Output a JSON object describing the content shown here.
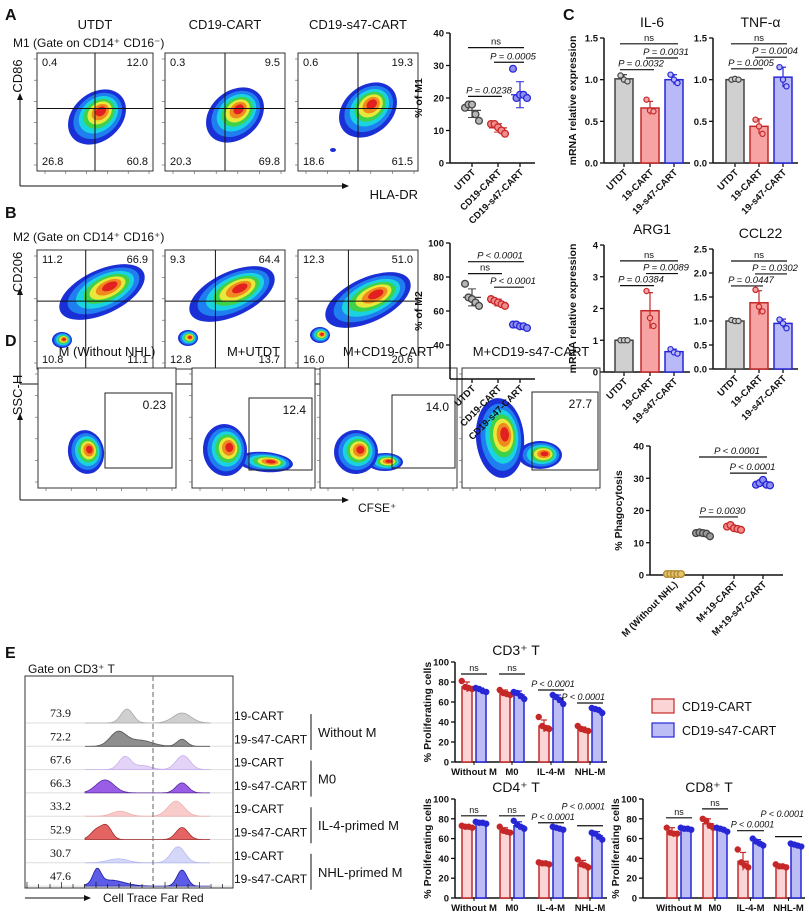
{
  "panels": {
    "A": {
      "label": "A",
      "columns": [
        "UTDT",
        "CD19-CART",
        "CD19-s47-CART"
      ],
      "gate": "M1 (Gate on CD14⁺ CD16⁻)",
      "y_axis": "CD86",
      "x_axis": "HLA-DR",
      "quadrants": [
        [
          "0.4",
          "12.0",
          "26.8",
          "60.8"
        ],
        [
          "0.3",
          "9.5",
          "20.3",
          "69.8"
        ],
        [
          "0.6",
          "19.3",
          "18.6",
          "61.5"
        ]
      ]
    },
    "B": {
      "label": "B",
      "gate": "M2 (Gate on CD14⁺ CD16⁺)",
      "y_axis": "CD206",
      "x_axis": "CD163",
      "quadrants": [
        [
          "11.2",
          "66.9",
          "10.8",
          "11.1"
        ],
        [
          "9.3",
          "64.4",
          "12.8",
          "13.7"
        ],
        [
          "12.3",
          "51.0",
          "16.0",
          "20.6"
        ]
      ]
    },
    "C": {
      "label": "C"
    },
    "D": {
      "label": "D",
      "columns": [
        "M (Without NHL)",
        "M+UTDT",
        "M+CD19-CART",
        "M+CD19-s47-CART"
      ],
      "y_axis": "SSC-H",
      "x_axis": "CFSE⁺",
      "gates": [
        "0.23",
        "12.4",
        "14.0",
        "27.7"
      ]
    },
    "E": {
      "label": "E",
      "gate": "Gate on CD3⁺ T",
      "x_axis": "Cell Trace Far Red",
      "rows": [
        {
          "value": "73.9",
          "sample": "19-CART"
        },
        {
          "value": "72.2",
          "sample": "19-s47-CART"
        },
        {
          "value": "67.6",
          "sample": "19-CART"
        },
        {
          "value": "66.3",
          "sample": "19-s47-CART"
        },
        {
          "value": "33.2",
          "sample": "19-CART"
        },
        {
          "value": "52.9",
          "sample": "19-s47-CART"
        },
        {
          "value": "30.7",
          "sample": "19-CART"
        },
        {
          "value": "47.6",
          "sample": "19-s47-CART"
        }
      ],
      "groups": [
        "Without M",
        "M0",
        "IL-4-primed M",
        "NHL-primed M"
      ]
    }
  },
  "chart_data": [
    {
      "type": "scatter",
      "ylabel": "% of M1",
      "ylim": [
        0,
        40
      ],
      "yticks": [
        "0",
        "10",
        "20",
        "30",
        "40"
      ],
      "categories": [
        "UTDT",
        "CD19-CART",
        "CD19-s47-CART"
      ],
      "groups": [
        {
          "points": [
            17,
            18,
            18,
            15,
            13
          ],
          "mean": 16.2,
          "sd": 2.2,
          "color": "#444444",
          "fill": "#b5b5b5"
        },
        {
          "points": [
            12,
            12,
            11,
            10,
            9
          ],
          "mean": 10.8,
          "sd": 1.3,
          "color": "#c62828",
          "fill": "#f28b8b"
        },
        {
          "points": [
            29,
            20,
            21,
            21,
            20
          ],
          "mean": 21,
          "sd": 4,
          "color": "#2727d6",
          "fill": "#8f8ff0"
        }
      ],
      "annotations": [
        {
          "from": 0,
          "to": 2,
          "text": "ns",
          "y": 35.5
        },
        {
          "from": 1,
          "to": 2,
          "text": "P = 0.0005",
          "y": 31
        },
        {
          "from": 0,
          "to": 1,
          "text": "P = 0.0238",
          "y": 20.5
        }
      ]
    },
    {
      "type": "scatter",
      "ylabel": "% of M2",
      "ylim": [
        20,
        100
      ],
      "yticks": [
        "40",
        "60",
        "80",
        "100"
      ],
      "categories": [
        "UTDT",
        "CD19-CART",
        "CD19-s47-CART"
      ],
      "groups": [
        {
          "points": [
            76,
            68,
            67,
            65,
            63
          ],
          "mean": 68,
          "sd": 5,
          "color": "#444444",
          "fill": "#b5b5b5"
        },
        {
          "points": [
            67,
            66,
            65,
            64,
            63
          ],
          "mean": 65,
          "sd": 2,
          "color": "#c62828",
          "fill": "#f28b8b"
        },
        {
          "points": [
            52,
            52,
            51,
            51,
            50
          ],
          "mean": 51,
          "sd": 1,
          "color": "#2727d6",
          "fill": "#8f8ff0"
        }
      ],
      "annotations": [
        {
          "from": 0,
          "to": 2,
          "text": "P < 0.0001",
          "y": 89
        },
        {
          "from": 0,
          "to": 1,
          "text": "ns",
          "y": 82
        },
        {
          "from": 1,
          "to": 2,
          "text": "P < 0.0001",
          "y": 74
        }
      ]
    },
    {
      "type": "bar",
      "title": "IL-6",
      "ylabel": "mRNA relative expression",
      "ylim": [
        0,
        1.5
      ],
      "yticks": [
        "0.0",
        "0.5",
        "1.0",
        "1.5"
      ],
      "categories": [
        "UTDT",
        "19-CART",
        "19-s47-CART"
      ],
      "groups": [
        {
          "points": [
            1.05,
            1.0,
            0.98
          ],
          "mean": 1.01,
          "sd": 0.05,
          "color": "#444444",
          "fill": "#d0d0d0"
        },
        {
          "points": [
            0.76,
            0.63,
            0.62
          ],
          "mean": 0.66,
          "sd": 0.08,
          "color": "#c62828",
          "fill": "#f7a3a3"
        },
        {
          "points": [
            1.06,
            1.0,
            0.96
          ],
          "mean": 1.0,
          "sd": 0.06,
          "color": "#2727d6",
          "fill": "#b9b9f7"
        }
      ],
      "annotations": [
        {
          "from": 0,
          "to": 2,
          "text": "ns",
          "y": 1.43
        },
        {
          "from": 1,
          "to": 2,
          "text": "P = 0.0031",
          "y": 1.26
        },
        {
          "from": 0,
          "to": 1,
          "text": "P = 0.0032",
          "y": 1.12
        }
      ]
    },
    {
      "type": "bar",
      "title": "TNF-α",
      "ylim": [
        0,
        1.5
      ],
      "yticks": [
        "0.0",
        "0.5",
        "1.0",
        "1.5"
      ],
      "categories": [
        "UTDT",
        "19-CART",
        "19-s47-CART"
      ],
      "groups": [
        {
          "points": [
            1.0,
            1.01,
            1.0
          ],
          "mean": 1.0,
          "sd": 0.02,
          "color": "#444444",
          "fill": "#d0d0d0"
        },
        {
          "points": [
            0.52,
            0.44,
            0.35
          ],
          "mean": 0.44,
          "sd": 0.09,
          "color": "#c62828",
          "fill": "#f7a3a3"
        },
        {
          "points": [
            1.15,
            1.0,
            0.92
          ],
          "mean": 1.03,
          "sd": 0.12,
          "color": "#2727d6",
          "fill": "#b9b9f7"
        }
      ],
      "annotations": [
        {
          "from": 0,
          "to": 2,
          "text": "ns",
          "y": 1.43
        },
        {
          "from": 1,
          "to": 2,
          "text": "P = 0.0004",
          "y": 1.27
        },
        {
          "from": 0,
          "to": 1,
          "text": "P = 0.0005",
          "y": 1.13
        }
      ]
    },
    {
      "type": "bar",
      "title": "ARG1",
      "ylabel": "mRNA relative expression",
      "ylim": [
        0,
        4
      ],
      "yticks": [
        "0",
        "1",
        "2",
        "3",
        "4"
      ],
      "categories": [
        "UTDT",
        "19-CART",
        "19-s47-CART"
      ],
      "groups": [
        {
          "points": [
            1.0,
            1.0,
            1.0
          ],
          "mean": 1.0,
          "sd": 0.01,
          "color": "#444444",
          "fill": "#d0d0d0"
        },
        {
          "points": [
            2.55,
            1.7,
            1.45
          ],
          "mean": 1.93,
          "sd": 0.57,
          "color": "#c62828",
          "fill": "#f7a3a3"
        },
        {
          "points": [
            0.72,
            0.62,
            0.58
          ],
          "mean": 0.64,
          "sd": 0.08,
          "color": "#2727d6",
          "fill": "#b9b9f7"
        }
      ],
      "annotations": [
        {
          "from": 0,
          "to": 2,
          "text": "ns",
          "y": 3.5
        },
        {
          "from": 1,
          "to": 2,
          "text": "P = 0.0089",
          "y": 3.1
        },
        {
          "from": 0,
          "to": 1,
          "text": "P = 0.0384",
          "y": 2.72
        }
      ]
    },
    {
      "type": "bar",
      "title": "CCL22",
      "ylim": [
        0,
        2.5
      ],
      "yticks": [
        "0.0",
        "0.5",
        "1.0",
        "1.5",
        "2.0",
        "2.5"
      ],
      "categories": [
        "UTDT",
        "19-CART",
        "19-s47-CART"
      ],
      "groups": [
        {
          "points": [
            1.02,
            1.0,
            1.0
          ],
          "mean": 1.0,
          "sd": 0.02,
          "color": "#444444",
          "fill": "#d0d0d0"
        },
        {
          "points": [
            1.65,
            1.3,
            1.2
          ],
          "mean": 1.38,
          "sd": 0.25,
          "color": "#c62828",
          "fill": "#f7a3a3"
        },
        {
          "points": [
            1.03,
            0.95,
            0.85
          ],
          "mean": 0.95,
          "sd": 0.09,
          "color": "#2727d6",
          "fill": "#b9b9f7"
        }
      ],
      "annotations": [
        {
          "from": 0,
          "to": 2,
          "text": "ns",
          "y": 2.25
        },
        {
          "from": 1,
          "to": 2,
          "text": "P = 0.0302",
          "y": 1.98
        },
        {
          "from": 0,
          "to": 1,
          "text": "P = 0.0447",
          "y": 1.73
        }
      ]
    },
    {
      "type": "scatter",
      "ylabel": "% Phagocytosis",
      "ylim": [
        0,
        40
      ],
      "yticks": [
        "0",
        "10",
        "20",
        "30",
        "40"
      ],
      "categories": [
        "M (Without NHL)",
        "M+UTDT",
        "M+19-CART",
        "M+19-s47-CART"
      ],
      "groups": [
        {
          "points": [
            0.3,
            0.3,
            0.3,
            0.3,
            0.3
          ],
          "mean": 0.3,
          "sd": 0.05,
          "color": "#b08a2e",
          "fill": "#e3c26e"
        },
        {
          "points": [
            13,
            13.2,
            13,
            12.8,
            12
          ],
          "mean": 12.8,
          "sd": 0.5,
          "color": "#444444",
          "fill": "#9a9a9a"
        },
        {
          "points": [
            15,
            15.5,
            14.5,
            14.3,
            14
          ],
          "mean": 14.7,
          "sd": 0.6,
          "color": "#c62828",
          "fill": "#f28b8b"
        },
        {
          "points": [
            28,
            28.5,
            29.5,
            28,
            27.8
          ],
          "mean": 28.4,
          "sd": 0.7,
          "color": "#2727d6",
          "fill": "#8f8ff0"
        }
      ],
      "annotations": [
        {
          "from": 1,
          "to": 3,
          "text": "P < 0.0001",
          "y": 36.6
        },
        {
          "from": 2,
          "to": 3,
          "text": "P < 0.0001",
          "y": 31.6
        },
        {
          "from": 1,
          "to": 2,
          "text": "P = 0.0030",
          "y": 18
        }
      ]
    },
    {
      "type": "bar",
      "title": "CD3⁺ T",
      "ylabel": "% Proliferating cells",
      "ylim": [
        0,
        100
      ],
      "yticks": [
        "0",
        "20",
        "40",
        "60",
        "80",
        "100"
      ],
      "categories": [
        "Without M",
        "M0",
        "IL-4-M",
        "NHL-M"
      ],
      "series": [
        {
          "name": "CD19-CART",
          "values": [
            75,
            69,
            36,
            33
          ],
          "sd": [
            5,
            3,
            6,
            2
          ],
          "points": [
            [
              81,
              75,
              74,
              73
            ],
            [
              72,
              69,
              68,
              67
            ],
            [
              45,
              36,
              34,
              33
            ],
            [
              36,
              33,
              32,
              31
            ]
          ],
          "color": "#c62828",
          "fill": "#fbd5d5"
        },
        {
          "name": "CD19-s47-CART",
          "values": [
            72,
            67,
            63,
            52
          ],
          "sd": [
            2,
            4,
            4,
            2
          ],
          "points": [
            [
              74,
              73,
              71,
              70
            ],
            [
              70,
              69,
              66,
              63
            ],
            [
              67,
              65,
              62,
              58
            ],
            [
              54,
              53,
              52,
              49
            ]
          ],
          "color": "#2727d6",
          "fill": "#bcbdf5"
        }
      ],
      "annotations": [
        {
          "category": 0,
          "text": "ns",
          "y": 88
        },
        {
          "category": 1,
          "text": "ns",
          "y": 88
        },
        {
          "category": 2,
          "text": "P < 0.0001",
          "y": 72
        },
        {
          "category": 3,
          "text": "P < 0.0001",
          "y": 59
        }
      ]
    },
    {
      "type": "bar",
      "title": "CD4⁺ T",
      "ylabel": "% Proliferating cells",
      "ylim": [
        0,
        100
      ],
      "yticks": [
        "0",
        "20",
        "40",
        "60",
        "80",
        "100"
      ],
      "categories": [
        "Without M",
        "M0",
        "IL-4-M",
        "NHL-M"
      ],
      "series": [
        {
          "name": "CD19-CART",
          "values": [
            72,
            68,
            35,
            34
          ],
          "sd": [
            1,
            3,
            1,
            4
          ],
          "points": [
            [
              73,
              72,
              72,
              71
            ],
            [
              72,
              68,
              67,
              66
            ],
            [
              36,
              35,
              35,
              34
            ],
            [
              39,
              34,
              33,
              31
            ]
          ],
          "color": "#c62828",
          "fill": "#fbd5d5"
        },
        {
          "name": "CD19-s47-CART",
          "values": [
            76,
            73,
            70,
            63
          ],
          "sd": [
            1,
            4,
            2,
            4
          ],
          "points": [
            [
              77,
              76,
              76,
              75
            ],
            [
              78,
              74,
              72,
              70
            ],
            [
              72,
              71,
              70,
              69
            ],
            [
              66,
              65,
              62,
              59
            ]
          ],
          "color": "#2727d6",
          "fill": "#bcbdf5"
        }
      ],
      "annotations": [
        {
          "category": 0,
          "text": "ns",
          "y": 83
        },
        {
          "category": 1,
          "text": "ns",
          "y": 83
        },
        {
          "category": 2,
          "text": "P < 0.0001",
          "y": 76
        },
        {
          "category": 3,
          "text": "P < 0.0001",
          "y": 73
        }
      ]
    },
    {
      "type": "bar",
      "title": "CD8⁺ T",
      "ylabel": "% Proliferating cells",
      "ylim": [
        0,
        100
      ],
      "yticks": [
        "0",
        "20",
        "40",
        "60",
        "80",
        "100"
      ],
      "categories": [
        "Without M",
        "M0",
        "IL-4-M",
        "NHL-M"
      ],
      "series": [
        {
          "name": "CD19-CART",
          "values": [
            67,
            75,
            37,
            32
          ],
          "sd": [
            4,
            5,
            9,
            2
          ],
          "points": [
            [
              71,
              66,
              65,
              65
            ],
            [
              80,
              78,
              73,
              71
            ],
            [
              49,
              36,
              33,
              31
            ],
            [
              34,
              32,
              32,
              31
            ]
          ],
          "color": "#c62828",
          "fill": "#fbd5d5"
        },
        {
          "name": "CD19-s47-CART",
          "values": [
            70,
            69,
            56,
            53
          ],
          "sd": [
            1,
            2,
            3,
            2
          ],
          "points": [
            [
              71,
              70,
              70,
              69
            ],
            [
              71,
              70,
              69,
              67
            ],
            [
              60,
              57,
              55,
              53
            ],
            [
              55,
              54,
              53,
              52
            ]
          ],
          "color": "#2727d6",
          "fill": "#bcbdf5"
        }
      ],
      "annotations": [
        {
          "category": 0,
          "text": "ns",
          "y": 81
        },
        {
          "category": 1,
          "text": "ns",
          "y": 90
        },
        {
          "category": 2,
          "text": "P < 0.0001",
          "y": 68
        },
        {
          "category": 3,
          "text": "P < 0.0001",
          "y": 62
        }
      ]
    }
  ]
}
